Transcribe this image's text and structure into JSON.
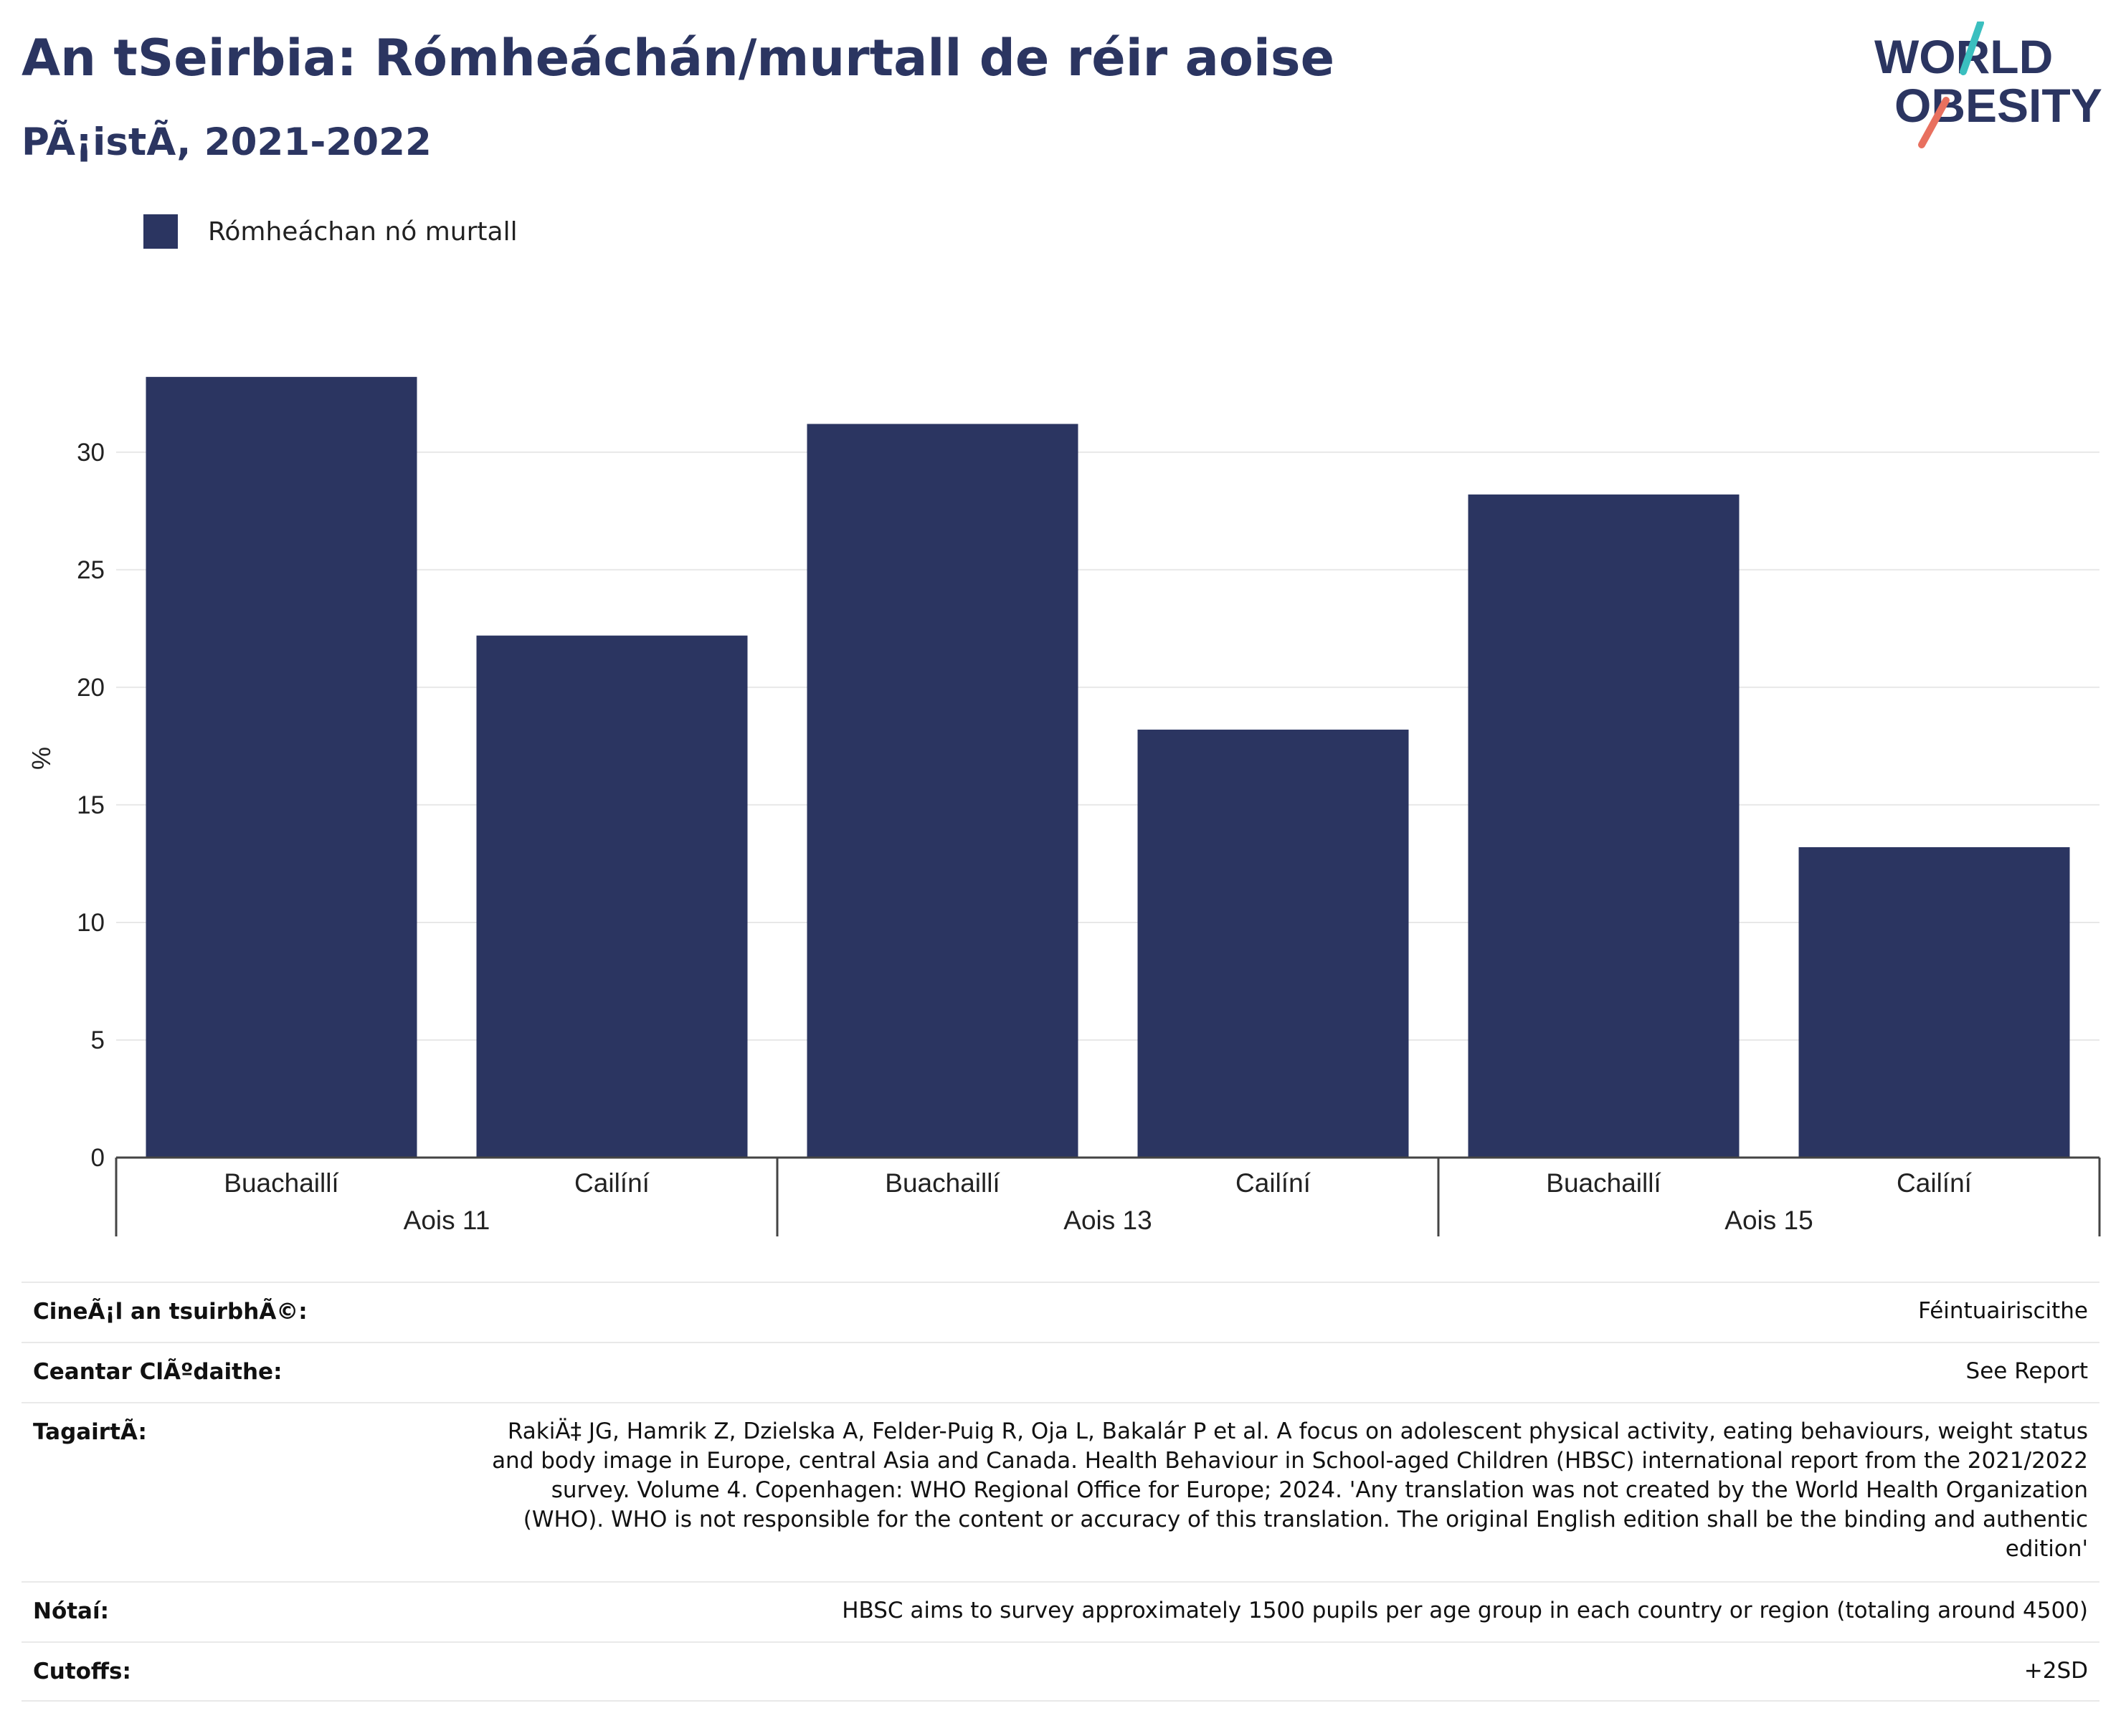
{
  "header": {
    "title": "An tSeirbia: Rómheáchán/murtall de réir aoise",
    "subtitle": "PÃ¡istÃ, 2021-2022"
  },
  "logo": {
    "line1": "WORLD",
    "line2": "OBESITY",
    "accent_colors": [
      "#3bbfbf",
      "#e8705f"
    ]
  },
  "legend": {
    "label": "Rómheáchan nó murtall",
    "color": "#2b3561"
  },
  "chart_data": {
    "type": "bar",
    "ylabel": "%",
    "ylim": [
      0,
      33.5
    ],
    "yticks": [
      "0",
      "5",
      "10",
      "15",
      "20",
      "25",
      "30"
    ],
    "grid": true,
    "legend_position": "top-left",
    "bar_color": "#2b3561",
    "groups": [
      {
        "label": "Aois 11",
        "categories": [
          "Buachaillí",
          "Cailíní"
        ],
        "values": [
          33.2,
          22.2
        ]
      },
      {
        "label": "Aois 13",
        "categories": [
          "Buachaillí",
          "Cailíní"
        ],
        "values": [
          31.2,
          18.2
        ]
      },
      {
        "label": "Aois 15",
        "categories": [
          "Buachaillí",
          "Cailíní"
        ],
        "values": [
          28.2,
          13.2
        ]
      }
    ],
    "series": [
      {
        "name": "Rómheáchan nó murtall"
      }
    ]
  },
  "info": [
    {
      "label": "CineÃ¡l an tsuirbhÃ©:",
      "value": "Féintuairiscithe"
    },
    {
      "label": "Ceantar ClÃºdaithe:",
      "value": "See Report"
    },
    {
      "label": "TagairtÃ:",
      "value": "RakiÄ‡ JG, Hamrik Z, Dzielska A, Felder-Puig R, Oja L, Bakalár P et al. A focus on adolescent physical activity, eating behaviours, weight status and body image in Europe, central Asia and Canada. Health Behaviour in School-aged Children (HBSC) international report from the 2021/2022 survey. Volume 4. Copenhagen: WHO Regional Office for Europe; 2024. 'Any translation was not created by the World Health Organization (WHO). WHO is not responsible for the content or accuracy of this translation. The original English edition shall be the binding and authentic edition'"
    },
    {
      "label": "Nótaí:",
      "value": "HBSC aims to survey approximately 1500 pupils per age group in each country or region (totaling around 4500)"
    },
    {
      "label": "Cutoffs:",
      "value": "+2SD"
    }
  ]
}
